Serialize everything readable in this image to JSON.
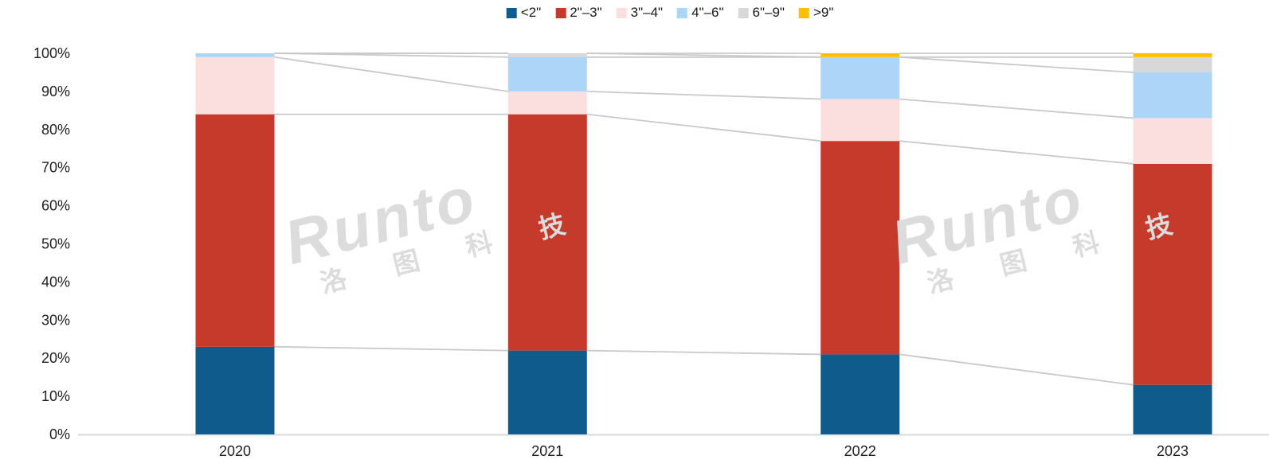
{
  "watermark": {
    "latin": "Runto",
    "cjk": "洛 图 科 技"
  },
  "axis": {
    "y_tick_labels": [
      "0%",
      "10%",
      "20%",
      "30%",
      "40%",
      "50%",
      "60%",
      "70%",
      "80%",
      "90%",
      "100%"
    ],
    "x_tick_labels": [
      "2020",
      "2021",
      "2022",
      "2023"
    ]
  },
  "chart_data": {
    "type": "bar",
    "subtype": "stacked-100-percent-column",
    "unit": "%",
    "categories": [
      "2020",
      "2021",
      "2022",
      "2023"
    ],
    "series": [
      {
        "name": "<2\"",
        "color": "#0F5B8C",
        "values": [
          23,
          22,
          21,
          13
        ]
      },
      {
        "name": "2\"–3\"",
        "color": "#C53A2B",
        "values": [
          61,
          62,
          56,
          58
        ]
      },
      {
        "name": "3\"–4\"",
        "color": "#FBDFDF",
        "values": [
          15,
          6,
          11,
          12
        ]
      },
      {
        "name": "4\"–6\"",
        "color": "#ACD5F8",
        "values": [
          1,
          9,
          11,
          12
        ]
      },
      {
        "name": "6\"–9\"",
        "color": "#D8D8D8",
        "values": [
          0,
          1,
          0,
          4
        ]
      },
      {
        "name": ">9\"",
        "color": "#FFC000",
        "values": [
          0,
          0,
          1,
          1
        ]
      }
    ],
    "ylim": [
      0,
      100
    ],
    "grid": false,
    "legend_position": "top",
    "connector_lines": true,
    "connector_color": "#C9C9C9",
    "axis_line_color": "#D9D9D9",
    "text_color": "#1f1f1f"
  }
}
